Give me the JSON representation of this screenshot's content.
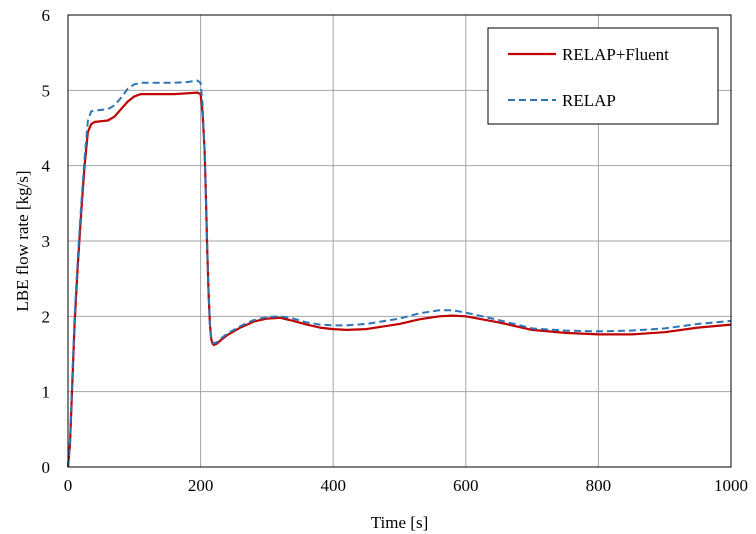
{
  "chart_data": {
    "type": "line",
    "title": "",
    "xlabel": "Time [s]",
    "ylabel": "LBE flow rate [kg/s]",
    "xlim": [
      0,
      1000
    ],
    "ylim": [
      0,
      6
    ],
    "xticks": [
      0,
      200,
      400,
      600,
      800,
      1000
    ],
    "yticks": [
      0,
      1,
      2,
      3,
      4,
      5,
      6
    ],
    "grid": true,
    "legend_position": "top-right",
    "series": [
      {
        "name": "RELAP+Fluent",
        "color": "#c00000",
        "style": "solid",
        "x": [
          0,
          3,
          6,
          10,
          15,
          20,
          25,
          30,
          35,
          40,
          50,
          60,
          70,
          80,
          90,
          100,
          110,
          120,
          140,
          160,
          180,
          195,
          200,
          203,
          206,
          208,
          210,
          212,
          214,
          216,
          218,
          220,
          225,
          230,
          240,
          260,
          280,
          300,
          320,
          340,
          360,
          380,
          400,
          420,
          450,
          500,
          530,
          560,
          580,
          600,
          650,
          700,
          750,
          800,
          850,
          900,
          950,
          1000
        ],
        "y": [
          0,
          0.3,
          1.0,
          1.9,
          2.7,
          3.4,
          4.0,
          4.45,
          4.55,
          4.58,
          4.59,
          4.6,
          4.65,
          4.75,
          4.85,
          4.92,
          4.95,
          4.95,
          4.95,
          4.95,
          4.96,
          4.97,
          4.95,
          4.7,
          4.2,
          3.6,
          2.9,
          2.3,
          1.9,
          1.7,
          1.64,
          1.62,
          1.64,
          1.68,
          1.75,
          1.85,
          1.93,
          1.97,
          1.98,
          1.94,
          1.89,
          1.85,
          1.83,
          1.82,
          1.83,
          1.9,
          1.96,
          2.0,
          2.01,
          2.0,
          1.92,
          1.82,
          1.78,
          1.76,
          1.76,
          1.79,
          1.85,
          1.89
        ]
      },
      {
        "name": "RELAP",
        "color": "#2e75b6",
        "style": "dashed",
        "x": [
          0,
          3,
          6,
          10,
          15,
          20,
          25,
          30,
          35,
          40,
          50,
          60,
          70,
          80,
          90,
          100,
          110,
          120,
          140,
          160,
          180,
          195,
          200,
          203,
          206,
          208,
          210,
          212,
          214,
          216,
          218,
          220,
          225,
          230,
          240,
          260,
          280,
          300,
          320,
          340,
          360,
          380,
          400,
          420,
          450,
          500,
          530,
          560,
          580,
          600,
          650,
          700,
          750,
          800,
          850,
          900,
          950,
          1000
        ],
        "y": [
          0,
          0.35,
          1.1,
          2.0,
          2.8,
          3.5,
          4.1,
          4.6,
          4.72,
          4.73,
          4.74,
          4.75,
          4.8,
          4.9,
          5.02,
          5.08,
          5.1,
          5.1,
          5.1,
          5.1,
          5.11,
          5.13,
          5.1,
          4.8,
          4.2,
          3.6,
          2.9,
          2.3,
          1.9,
          1.72,
          1.66,
          1.64,
          1.66,
          1.7,
          1.77,
          1.87,
          1.95,
          1.99,
          2.0,
          1.97,
          1.92,
          1.89,
          1.88,
          1.88,
          1.9,
          1.97,
          2.04,
          2.08,
          2.08,
          2.05,
          1.95,
          1.84,
          1.81,
          1.8,
          1.81,
          1.84,
          1.9,
          1.94
        ]
      }
    ]
  }
}
